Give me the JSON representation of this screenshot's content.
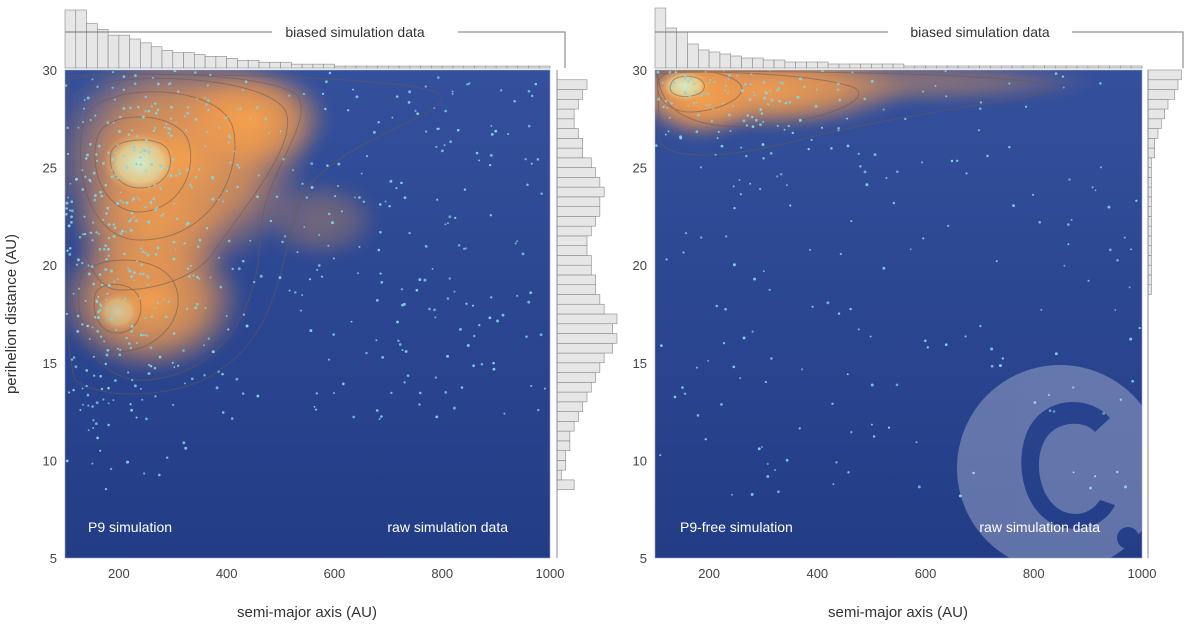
{
  "colors": {
    "background": "#2b4590",
    "density_high": "#f5a050",
    "density_peak": "#c8e6c4",
    "points": "#7fd6e6",
    "histogram_fill": "#e6e6e6",
    "histogram_stroke": "#888888",
    "watermark": "#ffffff"
  },
  "watermark_icon": "copyright-c-logo",
  "chart_data": [
    {
      "type": "scatter",
      "rendering": "density-heatmap-with-contours",
      "xlabel": "semi-major axis (AU)",
      "ylabel": "perihelion distance (AU)",
      "xlim": [
        100,
        1000
      ],
      "ylim": [
        5,
        30
      ],
      "xticks": [
        200,
        400,
        600,
        800,
        1000
      ],
      "yticks": [
        5,
        10,
        15,
        20,
        25,
        30
      ],
      "annotations": {
        "left": "P9 simulation",
        "right": "raw simulation data"
      },
      "top_histogram": {
        "label": "biased simulation data",
        "bin_width": 20,
        "x_start": 100,
        "counts": [
          30,
          30,
          23,
          20,
          17,
          17,
          15,
          13,
          11,
          9,
          8,
          8,
          7,
          6,
          6,
          5,
          4,
          4,
          3,
          3,
          3,
          2,
          2,
          2,
          2,
          1,
          1,
          1,
          1,
          1,
          1,
          1,
          1,
          1,
          1,
          1,
          1,
          1,
          1,
          1,
          1,
          1,
          1,
          1,
          1
        ]
      },
      "right_histogram": {
        "bin_width": 0.5,
        "y_start": 8.5,
        "counts": [
          4,
          1,
          2,
          2,
          3,
          3,
          4,
          5,
          6,
          7,
          8,
          9,
          10,
          11,
          13,
          14,
          13,
          14,
          11,
          10,
          9,
          9,
          8,
          8,
          7,
          7,
          8,
          9,
          10,
          10,
          11,
          10,
          9,
          8,
          6,
          6,
          5,
          4,
          4,
          5,
          6,
          7
        ]
      },
      "density_peaks": [
        {
          "x": 230,
          "y": 25.3,
          "weight": 1.0
        },
        {
          "x": 180,
          "y": 17.3,
          "weight": 0.75
        }
      ]
    },
    {
      "type": "scatter",
      "rendering": "density-heatmap-with-contours",
      "xlabel": "semi-major axis (AU)",
      "ylabel": "",
      "xlim": [
        100,
        1000
      ],
      "ylim": [
        5,
        30
      ],
      "xticks": [
        200,
        400,
        600,
        800,
        1000
      ],
      "yticks": [
        5,
        10,
        15,
        20,
        25,
        30
      ],
      "annotations": {
        "left": "P9-free simulation",
        "right": "raw simulation data"
      },
      "top_histogram": {
        "label": "biased simulation data",
        "bin_width": 20,
        "x_start": 100,
        "counts": [
          30,
          20,
          18,
          12,
          9,
          8,
          7,
          6,
          5,
          5,
          4,
          4,
          3,
          3,
          3,
          3,
          2,
          2,
          2,
          2,
          2,
          2,
          2,
          1,
          1,
          1,
          1,
          1,
          1,
          1,
          1,
          1,
          1,
          1,
          1,
          1,
          1,
          1,
          1,
          1,
          1,
          1,
          1,
          1,
          1
        ]
      },
      "right_histogram": {
        "bin_width": 0.5,
        "y_start": 18.5,
        "counts": [
          1,
          1,
          1,
          1,
          1,
          1,
          1,
          1,
          1,
          1,
          1,
          1,
          1,
          1,
          2,
          2,
          3,
          4,
          5,
          6,
          8,
          9,
          10,
          12,
          15
        ]
      },
      "density_peaks": [
        {
          "x": 150,
          "y": 29.2,
          "weight": 1.0
        },
        {
          "x": 300,
          "y": 28.3,
          "weight": 0.55
        }
      ]
    }
  ]
}
